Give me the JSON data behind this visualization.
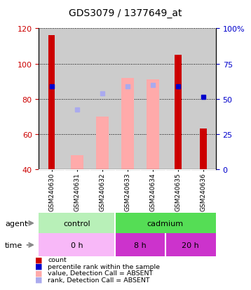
{
  "title": "GDS3079 / 1377649_at",
  "samples": [
    "GSM240630",
    "GSM240631",
    "GSM240632",
    "GSM240633",
    "GSM240634",
    "GSM240635",
    "GSM240636"
  ],
  "ylim_left": [
    40,
    120
  ],
  "ylim_right": [
    0,
    100
  ],
  "yticks_left": [
    40,
    60,
    80,
    100,
    120
  ],
  "yticks_right": [
    0,
    25,
    50,
    75,
    100
  ],
  "ytick_labels_right": [
    "0",
    "25",
    "50",
    "75",
    "100%"
  ],
  "red_bar_heights": [
    116,
    0,
    0,
    0,
    0,
    105,
    63
  ],
  "pink_bar_tops": [
    0,
    48,
    70,
    92,
    91,
    0,
    0
  ],
  "blue_dots_y": [
    87,
    0,
    0,
    0,
    0,
    87,
    81
  ],
  "blue_dots_present": [
    true,
    false,
    false,
    false,
    false,
    true,
    true
  ],
  "light_blue_dots_y": [
    0,
    74,
    83,
    87,
    88,
    0,
    0
  ],
  "light_blue_dots_present": [
    false,
    true,
    true,
    true,
    true,
    false,
    false
  ],
  "control_color_light": "#b8f0b8",
  "control_color_dark": "#55dd55",
  "time_light_color": "#f8b8f8",
  "time_dark_color": "#cc33cc",
  "bg_color": "#cccccc",
  "red_color": "#cc0000",
  "pink_color": "#ffaaaa",
  "blue_color": "#0000cc",
  "light_blue_color": "#aaaaee",
  "bar_width": 0.5
}
